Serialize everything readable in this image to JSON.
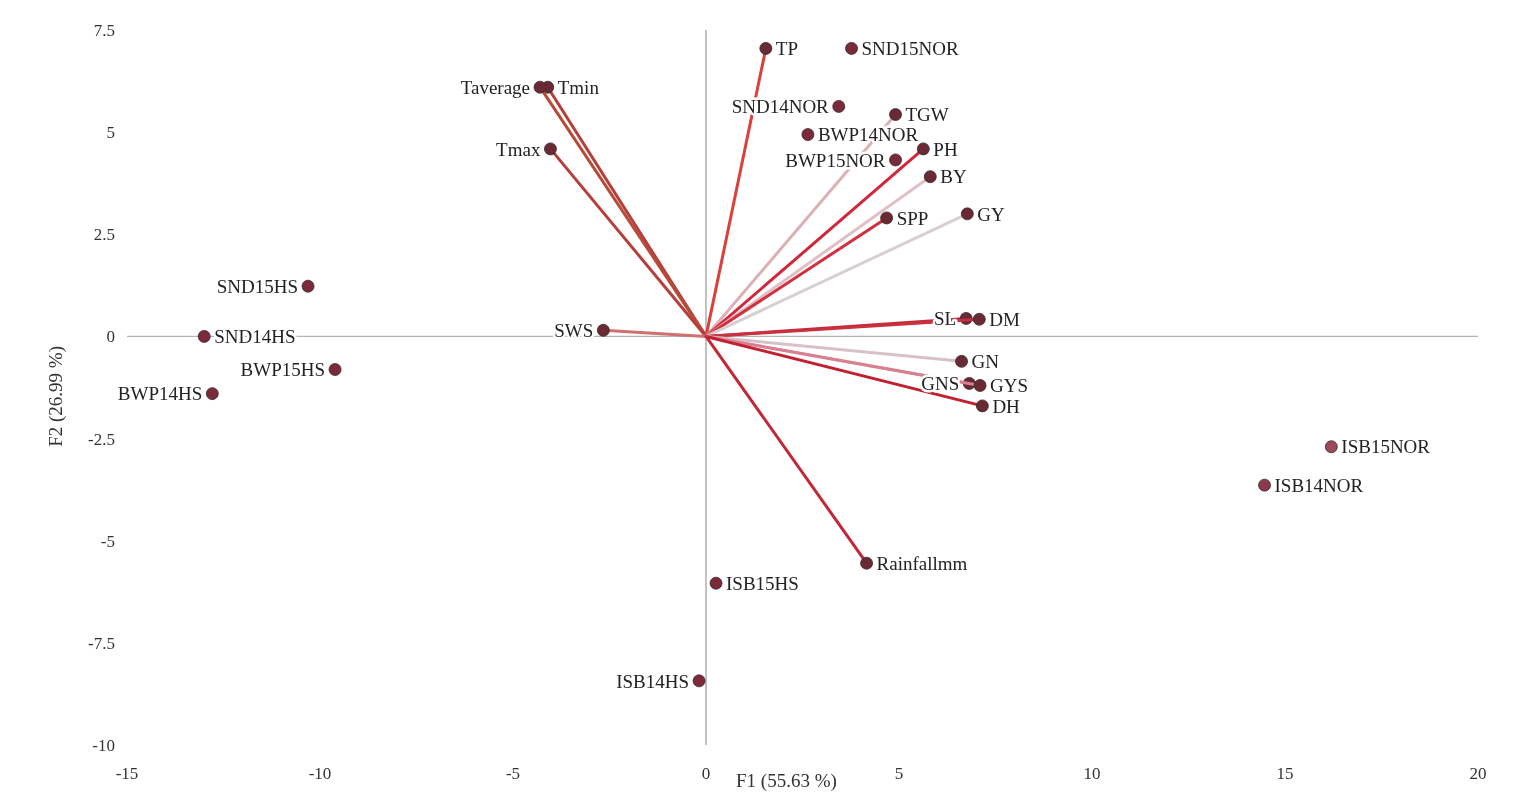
{
  "chart_data": {
    "type": "scatter",
    "xlabel": "F1 (55.63 %)",
    "ylabel": "F2 (26.99 %)",
    "xlim": [
      -15,
      20
    ],
    "ylim": [
      -10,
      7.5
    ],
    "xticks": [
      -15,
      -10,
      -5,
      0,
      5,
      10,
      15,
      20
    ],
    "yticks": [
      -10,
      -7.5,
      -5,
      -2.5,
      0,
      2.5,
      5,
      7.5
    ],
    "grid": false,
    "legend": false,
    "marker": "circle",
    "ref_lines": [
      {
        "axis": "y",
        "value": 0,
        "color": "#b4b4b4"
      },
      {
        "axis": "x",
        "value": 0,
        "color": "#999999"
      }
    ],
    "series": [
      {
        "name": "TP",
        "type": "line",
        "color": "#d9413a",
        "x": [
          0,
          1.55
        ],
        "values": [
          0,
          7.05
        ]
      },
      {
        "name": "Tmin",
        "type": "line",
        "color": "#b5403a",
        "x": [
          0,
          -4.1
        ],
        "values": [
          0,
          6.1
        ]
      },
      {
        "name": "Taverage",
        "type": "line",
        "color": "#b84a3a",
        "x": [
          0,
          -4.3
        ],
        "values": [
          0,
          6.1
        ]
      },
      {
        "name": "Tmax",
        "type": "line",
        "color": "#b5403a",
        "x": [
          0,
          -4.03
        ],
        "values": [
          0,
          4.59
        ]
      },
      {
        "name": "TGW",
        "type": "line",
        "color": "#dcb0b5",
        "x": [
          0,
          4.91
        ],
        "values": [
          0,
          5.43
        ]
      },
      {
        "name": "PH",
        "type": "line",
        "color": "#d0283a",
        "x": [
          0,
          5.63
        ],
        "values": [
          0,
          4.59
        ]
      },
      {
        "name": "BY",
        "type": "line",
        "color": "#e0c0c5",
        "x": [
          0,
          5.81
        ],
        "values": [
          0,
          3.91
        ]
      },
      {
        "name": "SPP",
        "type": "line",
        "color": "#d03040",
        "x": [
          0,
          4.68
        ],
        "values": [
          0,
          2.9
        ]
      },
      {
        "name": "GY",
        "type": "line",
        "color": "#d8d0d0",
        "x": [
          0,
          6.77
        ],
        "values": [
          0,
          3.0
        ]
      },
      {
        "name": "SL",
        "type": "line",
        "color": "#c82838",
        "x": [
          0,
          6.74
        ],
        "values": [
          0,
          0.44
        ]
      },
      {
        "name": "DM",
        "type": "line",
        "color": "#c83040",
        "x": [
          0,
          7.08
        ],
        "values": [
          0,
          0.42
        ]
      },
      {
        "name": "GN",
        "type": "line",
        "color": "#d8c0c8",
        "x": [
          0,
          6.62
        ],
        "values": [
          0,
          -0.61
        ]
      },
      {
        "name": "GNS",
        "type": "line",
        "color": "#e0a0a8",
        "x": [
          0,
          6.82
        ],
        "values": [
          0,
          -1.15
        ]
      },
      {
        "name": "GYS",
        "type": "line",
        "color": "#d88090",
        "x": [
          0,
          7.1
        ],
        "values": [
          0,
          -1.2
        ]
      },
      {
        "name": "DH",
        "type": "line",
        "color": "#c02030",
        "x": [
          0,
          7.16
        ],
        "values": [
          0,
          -1.7
        ]
      },
      {
        "name": "SWS",
        "type": "line",
        "color": "#d07070",
        "x": [
          0,
          -2.66
        ],
        "values": [
          0,
          0.15
        ]
      },
      {
        "name": "Rainfallmm",
        "type": "line",
        "color": "#c02838",
        "x": [
          0,
          4.16
        ],
        "values": [
          0,
          -5.55
        ]
      },
      {
        "name": "SND15NOR",
        "color": "#7b2a3a",
        "x": [
          3.77
        ],
        "values": [
          7.05
        ]
      },
      {
        "name": "SND14NOR",
        "color": "#7b2a3a",
        "x": [
          3.44
        ],
        "values": [
          5.63
        ]
      },
      {
        "name": "BWP14NOR",
        "color": "#7b2a3a",
        "x": [
          2.64
        ],
        "values": [
          4.94
        ]
      },
      {
        "name": "BWP15NOR",
        "color": "#7b2a3a",
        "x": [
          4.91
        ],
        "values": [
          4.32
        ]
      },
      {
        "name": "SND15HS",
        "color": "#7b2a3a",
        "x": [
          -10.31
        ],
        "values": [
          1.23
        ]
      },
      {
        "name": "SND14HS",
        "color": "#7b2a3a",
        "x": [
          -13.0
        ],
        "values": [
          0.0
        ]
      },
      {
        "name": "BWP15HS",
        "color": "#7b2a3a",
        "x": [
          -9.61
        ],
        "values": [
          -0.81
        ]
      },
      {
        "name": "BWP14HS",
        "color": "#7b2a3a",
        "x": [
          -12.79
        ],
        "values": [
          -1.4
        ]
      },
      {
        "name": "ISB15NOR",
        "color": "#9a4a5a",
        "x": [
          16.2
        ],
        "values": [
          -2.7
        ]
      },
      {
        "name": "ISB14NOR",
        "color": "#8a3a4a",
        "x": [
          14.47
        ],
        "values": [
          -3.64
        ]
      },
      {
        "name": "ISB15HS",
        "color": "#7b2a3a",
        "x": [
          0.26
        ],
        "values": [
          -6.04
        ]
      },
      {
        "name": "ISB14HS",
        "color": "#7b2a3a",
        "x": [
          -0.18
        ],
        "values": [
          -8.43
        ]
      }
    ]
  }
}
